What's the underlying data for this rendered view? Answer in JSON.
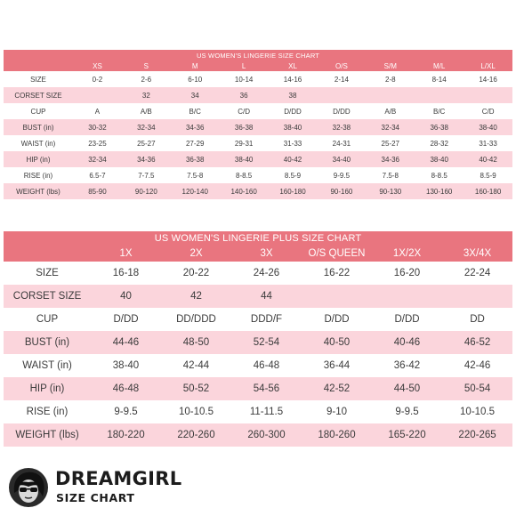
{
  "chart1": {
    "title": "US WOMEN'S LINGERIE SIZE CHART",
    "headers": [
      "",
      "XS",
      "S",
      "M",
      "L",
      "XL",
      "O/S",
      "S/M",
      "M/L",
      "L/XL"
    ],
    "rows": [
      [
        "SIZE",
        "0-2",
        "2-6",
        "6-10",
        "10-14",
        "14-16",
        "2-14",
        "2-8",
        "8-14",
        "14-16"
      ],
      [
        "CORSET SIZE",
        "",
        "32",
        "34",
        "36",
        "38",
        "",
        "",
        "",
        ""
      ],
      [
        "CUP",
        "A",
        "A/B",
        "B/C",
        "C/D",
        "D/DD",
        "D/DD",
        "A/B",
        "B/C",
        "C/D"
      ],
      [
        "BUST (in)",
        "30-32",
        "32-34",
        "34-36",
        "36-38",
        "38-40",
        "32-38",
        "32-34",
        "36-38",
        "38-40"
      ],
      [
        "WAIST (in)",
        "23-25",
        "25-27",
        "27-29",
        "29-31",
        "31-33",
        "24-31",
        "25-27",
        "28-32",
        "31-33"
      ],
      [
        "HIP (in)",
        "32-34",
        "34-36",
        "36-38",
        "38-40",
        "40-42",
        "34-40",
        "34-36",
        "38-40",
        "40-42"
      ],
      [
        "RISE (in)",
        "6.5-7",
        "7-7.5",
        "7.5-8",
        "8-8.5",
        "8.5-9",
        "9-9.5",
        "7.5-8",
        "8-8.5",
        "8.5-9"
      ],
      [
        "WEIGHT (lbs)",
        "85-90",
        "90-120",
        "120-140",
        "140-160",
        "160-180",
        "90-160",
        "90-130",
        "130-160",
        "160-180"
      ]
    ]
  },
  "chart2": {
    "title": "US WOMEN'S LINGERIE PLUS SIZE CHART",
    "headers": [
      "",
      "1X",
      "2X",
      "3X",
      "O/S QUEEN",
      "1X/2X",
      "3X/4X"
    ],
    "rows": [
      [
        "SIZE",
        "16-18",
        "20-22",
        "24-26",
        "16-22",
        "16-20",
        "22-24"
      ],
      [
        "CORSET SIZE",
        "40",
        "42",
        "44",
        "",
        "",
        ""
      ],
      [
        "CUP",
        "D/DD",
        "DD/DDD",
        "DDD/F",
        "D/DD",
        "D/DD",
        "DD"
      ],
      [
        "BUST (in)",
        "44-46",
        "48-50",
        "52-54",
        "40-50",
        "40-46",
        "46-52"
      ],
      [
        "WAIST (in)",
        "38-40",
        "42-44",
        "46-48",
        "36-44",
        "36-42",
        "42-46"
      ],
      [
        "HIP (in)",
        "46-48",
        "50-52",
        "54-56",
        "42-52",
        "44-50",
        "50-54"
      ],
      [
        "RISE (in)",
        "9-9.5",
        "10-10.5",
        "11-11.5",
        "9-10",
        "9-9.5",
        "10-10.5"
      ],
      [
        "WEIGHT (lbs)",
        "180-220",
        "220-260",
        "260-300",
        "180-260",
        "165-220",
        "220-265"
      ]
    ]
  },
  "brand": {
    "name": "DREAMGIRL",
    "subtitle": "SIZE CHART",
    "logo_icon": "woman-with-sunglasses-icon"
  },
  "colors": {
    "header_bg": "#e9757f",
    "row_pink": "#fbd5dc",
    "row_white": "#ffffff"
  }
}
